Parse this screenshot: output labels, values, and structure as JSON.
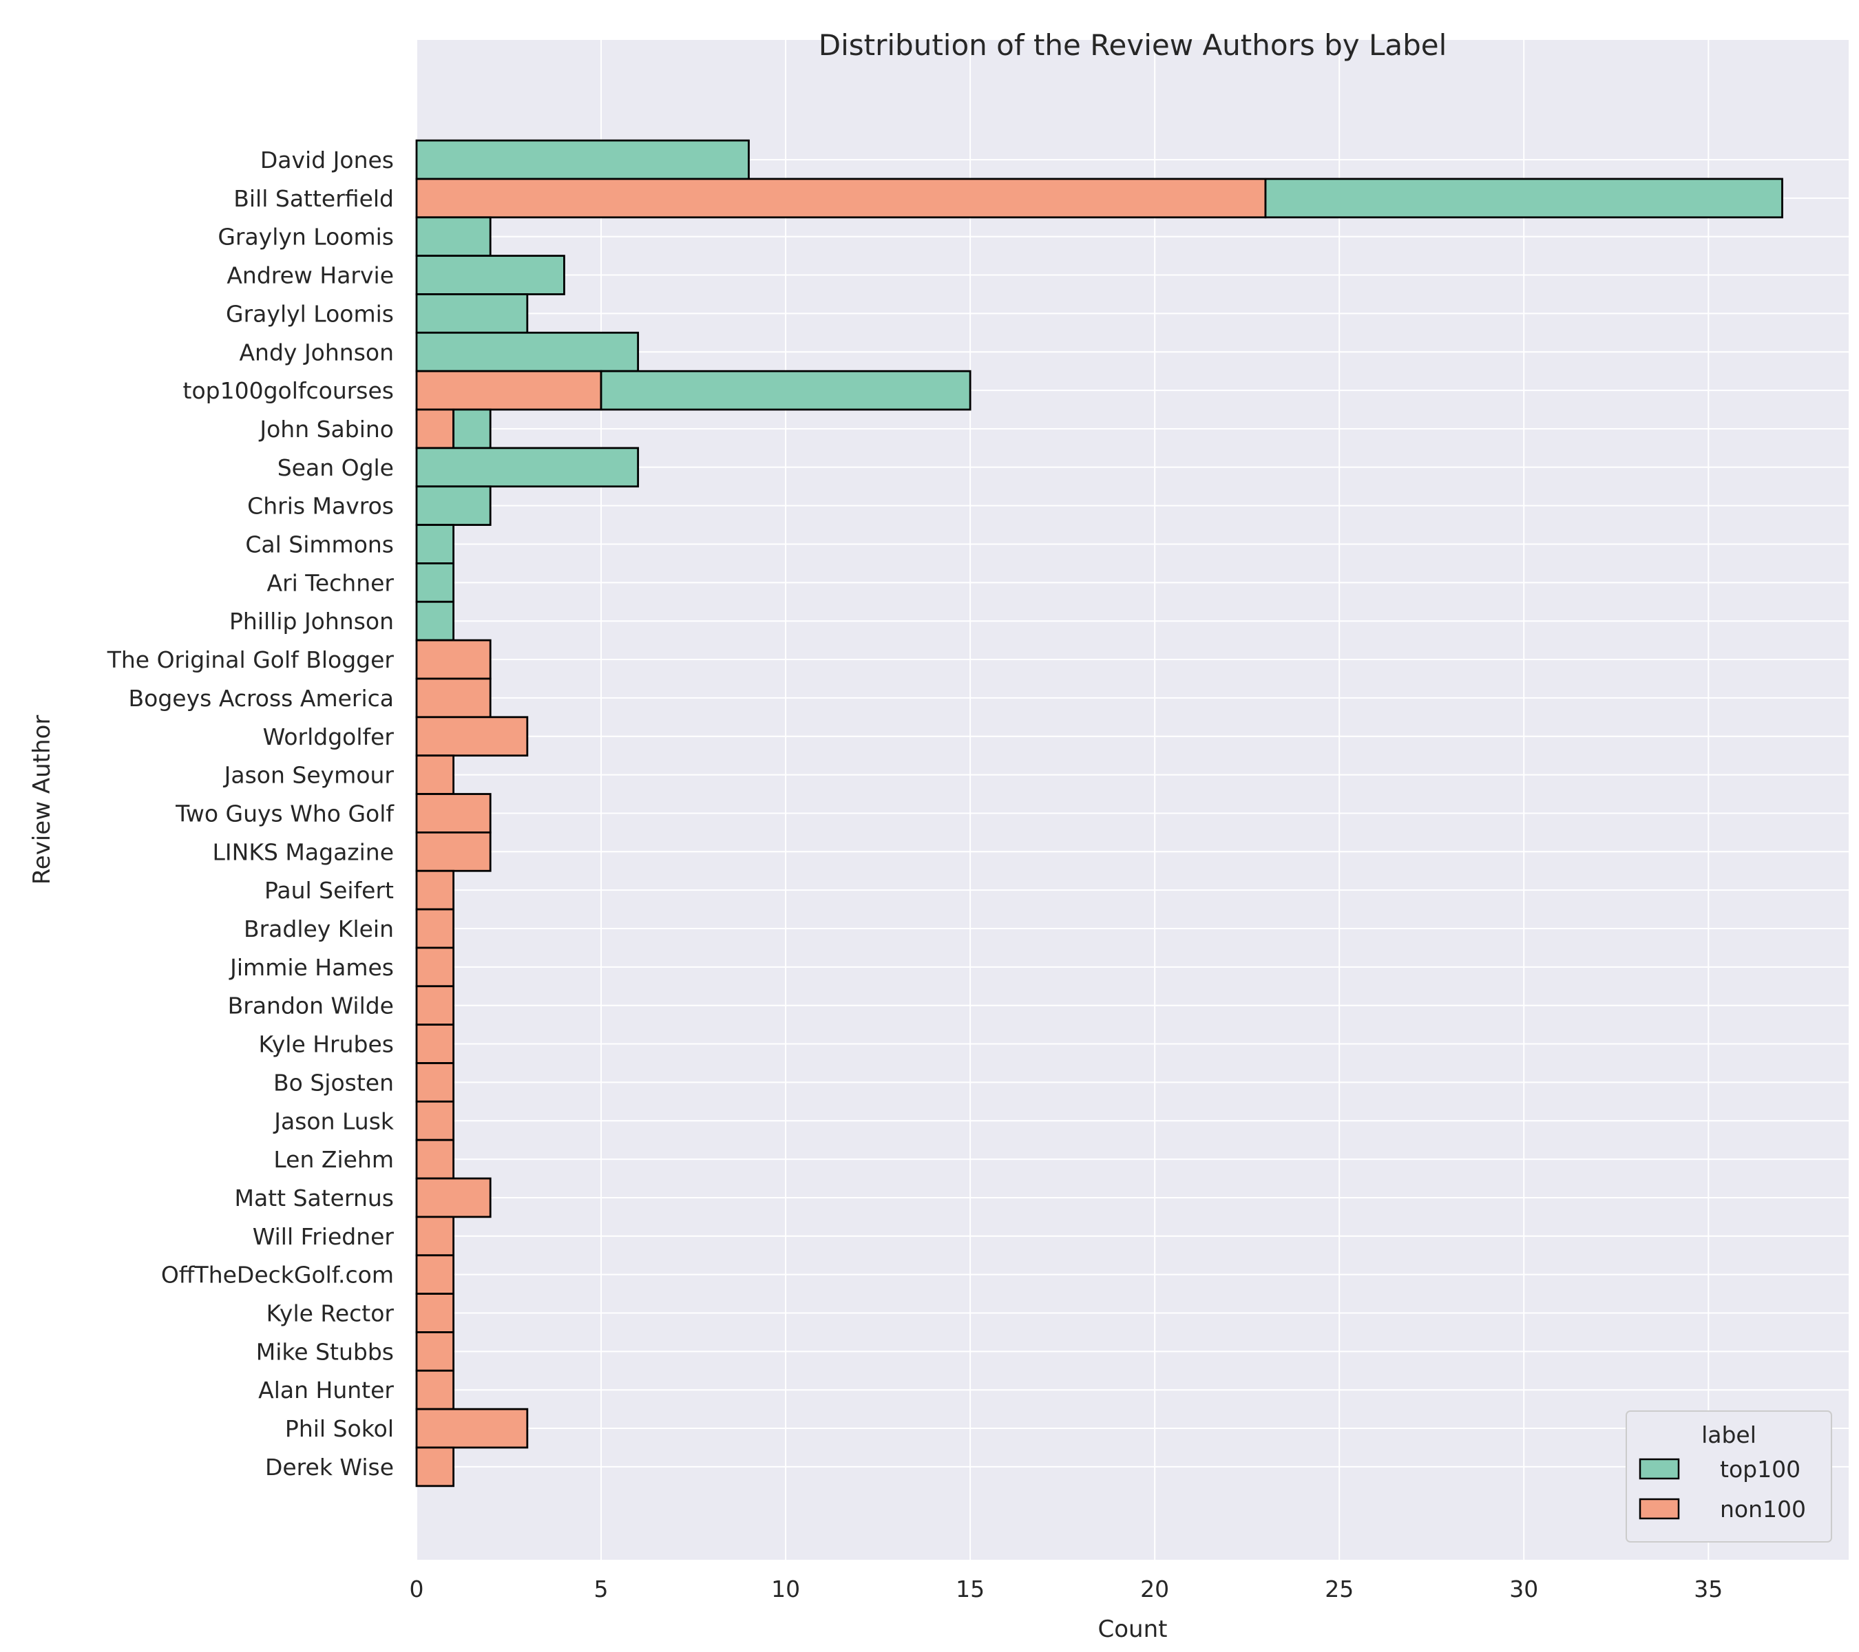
{
  "chart_data": {
    "type": "bar",
    "orientation": "horizontal",
    "stacked": true,
    "title": "Distribution of the Review Authors by Label",
    "xlabel": "Count",
    "ylabel": "Review Author",
    "xlim": [
      0,
      38.8
    ],
    "xticks": [
      0,
      5,
      10,
      15,
      20,
      25,
      30,
      35
    ],
    "grid": true,
    "categories": [
      "David Jones",
      "Bill Satterfield",
      "Graylyn Loomis",
      "Andrew Harvie",
      "Graylyl Loomis",
      "Andy Johnson",
      "top100golfcourses",
      "John Sabino",
      "Sean Ogle",
      "Chris Mavros",
      "Cal Simmons",
      "Ari Techner",
      "Phillip Johnson",
      "The Original Golf Blogger",
      "Bogeys Across America",
      "Worldgolfer",
      "Jason Seymour",
      "Two Guys Who Golf",
      "LINKS Magazine",
      "Paul Seifert",
      "Bradley Klein",
      "Jimmie Hames",
      "Brandon Wilde",
      "Kyle Hrubes",
      "Bo Sjosten",
      "Jason Lusk",
      "Len Ziehm",
      "Matt Saternus",
      "Will Friedner",
      "OffTheDeckGolf.com",
      "Kyle Rector",
      "Mike Stubbs",
      "Alan Hunter",
      "Phil Sokol",
      "Derek Wise"
    ],
    "series": [
      {
        "name": "non100",
        "color": "#f4a083",
        "values": [
          0,
          23,
          0,
          0,
          0,
          0,
          5,
          1,
          0,
          0,
          0,
          0,
          0,
          2,
          2,
          3,
          1,
          2,
          2,
          1,
          1,
          1,
          1,
          1,
          1,
          1,
          1,
          2,
          1,
          1,
          1,
          1,
          1,
          3,
          1
        ]
      },
      {
        "name": "top100",
        "color": "#86ccb4",
        "values": [
          9,
          14,
          2,
          4,
          3,
          6,
          10,
          1,
          6,
          2,
          1,
          1,
          1,
          0,
          0,
          0,
          0,
          0,
          0,
          0,
          0,
          0,
          0,
          0,
          0,
          0,
          0,
          0,
          0,
          0,
          0,
          0,
          0,
          0,
          0
        ]
      }
    ],
    "legend": {
      "title": "label",
      "position": "lower right",
      "entries": [
        {
          "label": "top100",
          "color": "#86ccb4"
        },
        {
          "label": "non100",
          "color": "#f4a083"
        }
      ]
    },
    "background": "#eaeaf2",
    "grid_color": "#ffffff",
    "edge_color": "#000000"
  }
}
